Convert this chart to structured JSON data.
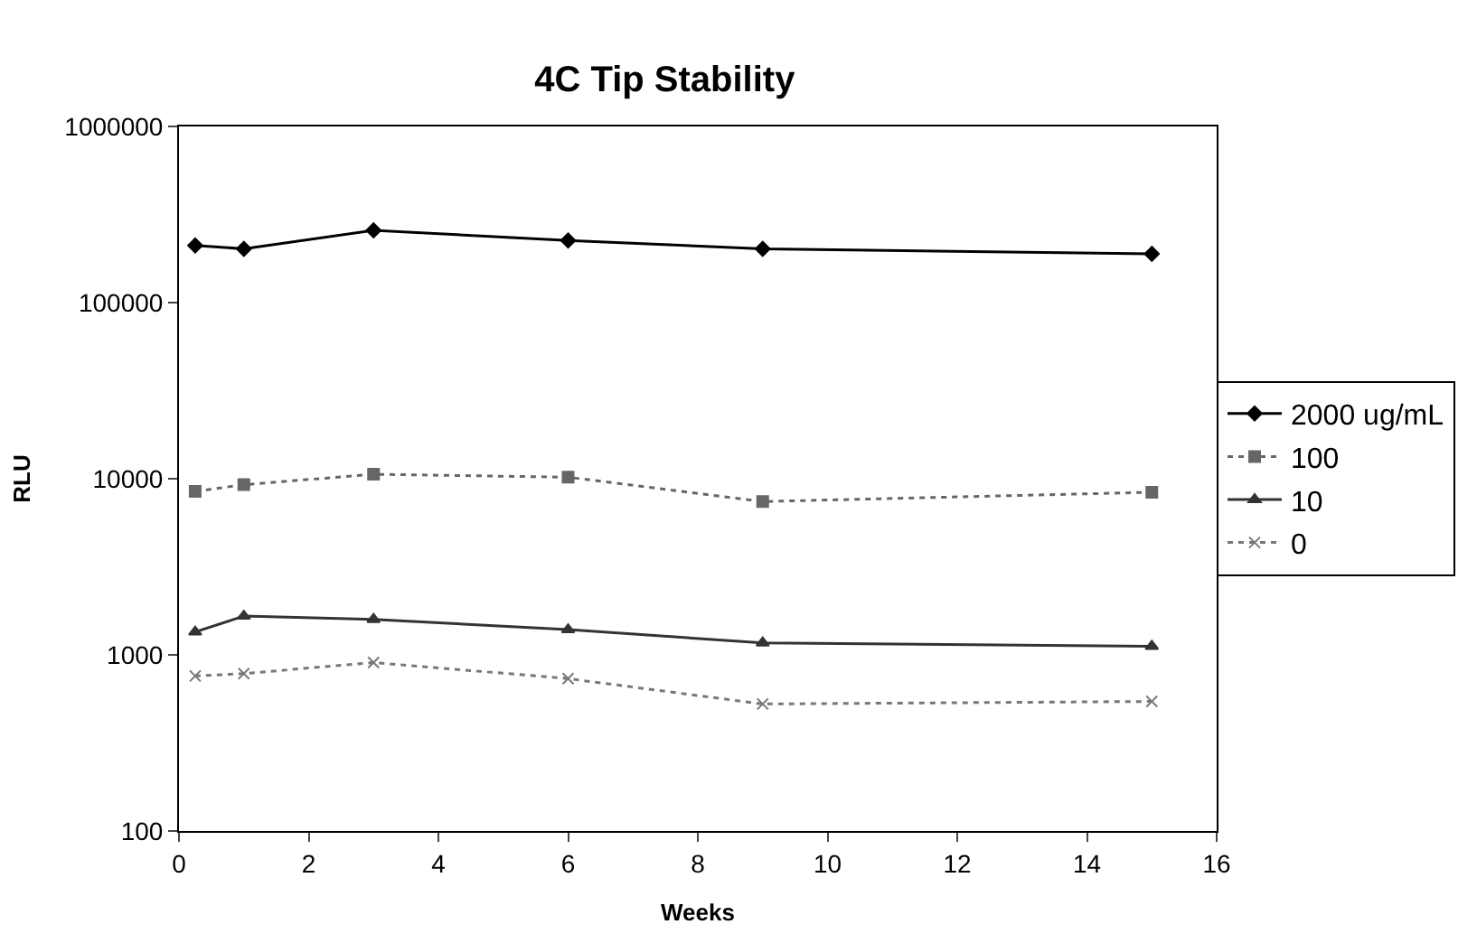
{
  "chart_data": {
    "type": "line",
    "title": "4C Tip Stability",
    "xlabel": "Weeks",
    "ylabel": "RLU",
    "log": "y",
    "x": [
      0.25,
      1,
      3,
      6,
      9,
      15
    ],
    "series": [
      {
        "name": "2000 ug/mL",
        "color": "#000000",
        "marker": "diamond",
        "line_style": "solid",
        "values": [
          211000,
          202000,
          257000,
          225000,
          202000,
          189000
        ]
      },
      {
        "name": "100",
        "color": "#666666",
        "marker": "square",
        "line_style": "dotted",
        "values": [
          8470,
          9250,
          10600,
          10200,
          7420,
          8380
        ]
      },
      {
        "name": "10",
        "color": "#333333",
        "marker": "triangle",
        "line_style": "solid",
        "values": [
          1350,
          1660,
          1590,
          1390,
          1170,
          1120
        ]
      },
      {
        "name": "0",
        "color": "#777777",
        "marker": "cross",
        "line_style": "dotted",
        "values": [
          759,
          783,
          905,
          733,
          526,
          544
        ]
      }
    ],
    "xlim": [
      0,
      16
    ],
    "xticks": [
      0,
      2,
      4,
      6,
      8,
      10,
      12,
      14,
      16
    ],
    "ylim": [
      100,
      1000000
    ],
    "yticks": [
      100,
      1000,
      10000,
      100000,
      1000000
    ],
    "grid": false,
    "legend": "right"
  }
}
